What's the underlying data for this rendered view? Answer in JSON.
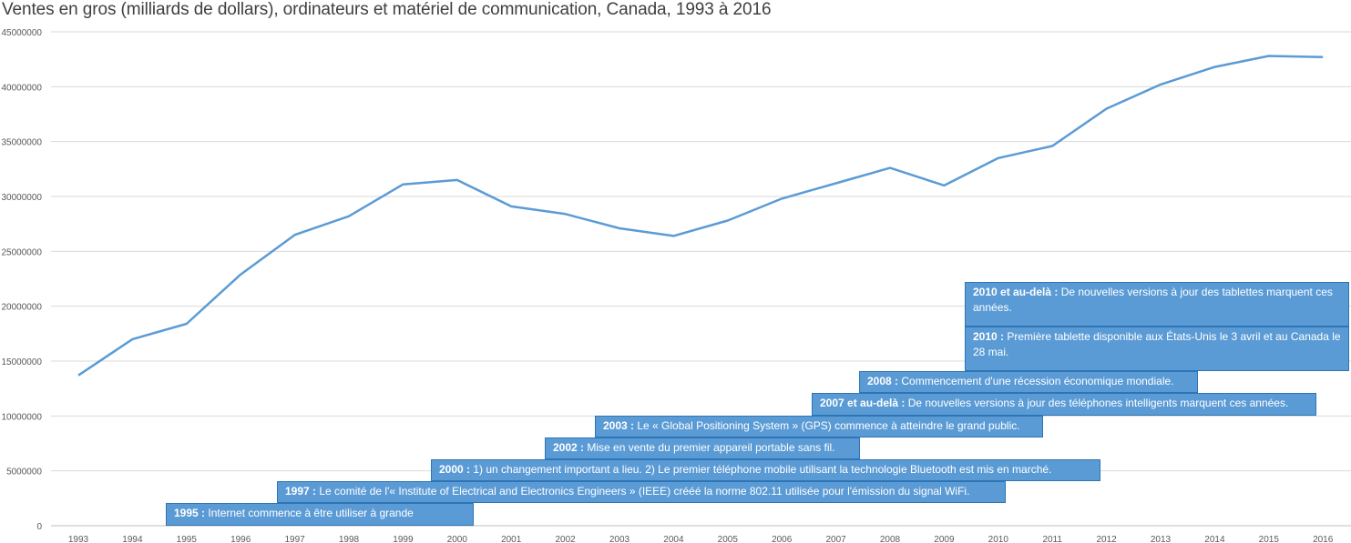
{
  "chart_data": {
    "type": "line",
    "title": "Ventes en gros (milliards de dollars), ordinateurs et matériel de communication, Canada, 1993 à 2016",
    "xlabel": "",
    "ylabel": "",
    "ylim": [
      0,
      45000000
    ],
    "yticks": [
      0,
      5000000,
      10000000,
      15000000,
      20000000,
      25000000,
      30000000,
      35000000,
      40000000,
      45000000
    ],
    "ytick_labels": [
      "0",
      "5000000",
      "10000000",
      "15000000",
      "20000000",
      "25000000",
      "30000000",
      "35000000",
      "40000000",
      "45000000"
    ],
    "grid": true,
    "line_color": "#5b9bd5",
    "categories": [
      "1993",
      "1994",
      "1995",
      "1996",
      "1997",
      "1998",
      "1999",
      "2000",
      "2001",
      "2002",
      "2003",
      "2004",
      "2005",
      "2006",
      "2007",
      "2008",
      "2009",
      "2010",
      "2011",
      "2012",
      "2013",
      "2014",
      "2015",
      "2016"
    ],
    "values": [
      13700000,
      17000000,
      18400000,
      22900000,
      26500000,
      28200000,
      31100000,
      31500000,
      29100000,
      28400000,
      27100000,
      26400000,
      27800000,
      29800000,
      31200000,
      32600000,
      31000000,
      33500000,
      34600000,
      38000000,
      40200000,
      41800000,
      42800000,
      42700000
    ],
    "annotations": [
      {
        "year": "1995",
        "bold": "1995 :",
        "text": "  Internet commence à être utiliser à grande"
      },
      {
        "year": "1997",
        "bold": "1997 :",
        "text": " Le comité de l'« Institute of Electrical and Electronics Engineers » (IEEE) crééé la norme 802.11 utilisée pour l'émission du signal WiFi."
      },
      {
        "year": "2000",
        "bold": "2000 :",
        "text": " 1) un changement important a lieu.  2) Le premier téléphone mobile utilisant la technologie Bluetooth est mis en marché."
      },
      {
        "year": "2002",
        "bold": "2002 :",
        "text": " Mise en vente du premier appareil portable sans fil."
      },
      {
        "year": "2003",
        "bold": "2003 :",
        "text": " Le « Global Positioning System » (GPS) commence à atteindre le grand public."
      },
      {
        "year": "2007",
        "bold": "2007 et au-delà :",
        "text": " De nouvelles versions à jour des téléphones intelligents marquent ces années."
      },
      {
        "year": "2008",
        "bold": "2008 :",
        "text": " Commencement d'une récession économique mondiale."
      },
      {
        "year": "2010",
        "bold": "2010 :",
        "text": " Première tablette disponible aux États-Unis le 3 avril et au Canada le 28 mai."
      },
      {
        "year": "2010+",
        "bold": "2010 et au-delà :",
        "text": " De nouvelles versions à jour des tablettes marquent ces années."
      }
    ]
  }
}
